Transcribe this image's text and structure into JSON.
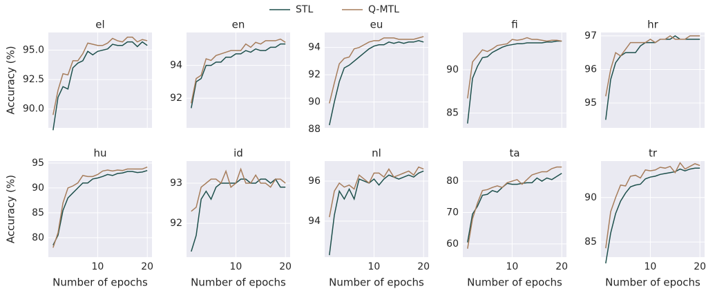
{
  "chart_data": [
    {
      "type": "line",
      "title": "el",
      "ylabel": "Accuracy (%)",
      "show_xtick_labels": false,
      "grid": true,
      "x": [
        1,
        2,
        3,
        4,
        5,
        6,
        7,
        8,
        9,
        10,
        11,
        12,
        13,
        14,
        15,
        16,
        17,
        18,
        19,
        20
      ],
      "xlim": [
        0.05,
        20.95
      ],
      "xticks": [
        10,
        20
      ],
      "ylim": [
        88.4,
        96.5
      ],
      "yticks": [
        {
          "value": 90,
          "label": "90.0"
        },
        92.5,
        {
          "value": 95,
          "label": "95.0"
        }
      ],
      "series": [
        {
          "name": "STL",
          "color": "#1d4f4b",
          "values": [
            88.2,
            91.0,
            91.9,
            91.7,
            93.5,
            93.9,
            94.1,
            94.9,
            94.6,
            94.9,
            95.0,
            95.1,
            95.5,
            95.4,
            95.4,
            95.7,
            95.7,
            95.3,
            95.7,
            95.4
          ]
        },
        {
          "name": "Q-MTL",
          "color": "#a67c5a",
          "values": [
            89.5,
            91.6,
            93.0,
            92.9,
            94.1,
            94.1,
            94.7,
            95.6,
            95.5,
            95.4,
            95.4,
            95.6,
            96.0,
            95.8,
            95.7,
            96.1,
            96.1,
            95.7,
            95.9,
            95.8
          ]
        }
      ]
    },
    {
      "type": "line",
      "title": "en",
      "show_xtick_labels": false,
      "grid": true,
      "x": [
        1,
        2,
        3,
        4,
        5,
        6,
        7,
        8,
        9,
        10,
        11,
        12,
        13,
        14,
        15,
        16,
        17,
        18,
        19,
        20
      ],
      "xlim": [
        0.05,
        20.95
      ],
      "xticks": [
        10,
        20
      ],
      "ylim": [
        90.2,
        96.0
      ],
      "yticks": [
        92,
        94
      ],
      "series": [
        {
          "name": "STL",
          "color": "#1d4f4b",
          "values": [
            91.4,
            93.0,
            93.2,
            94.0,
            94.0,
            94.2,
            94.2,
            94.5,
            94.5,
            94.7,
            94.7,
            94.9,
            94.8,
            95.0,
            94.9,
            94.9,
            95.1,
            95.1,
            95.3,
            95.3
          ]
        },
        {
          "name": "Q-MTL",
          "color": "#a67c5a",
          "values": [
            91.7,
            93.2,
            93.4,
            94.4,
            94.3,
            94.6,
            94.7,
            94.8,
            94.9,
            94.9,
            94.9,
            95.3,
            95.1,
            95.4,
            95.3,
            95.5,
            95.5,
            95.5,
            95.6,
            95.4
          ]
        }
      ]
    },
    {
      "type": "line",
      "title": "eu",
      "show_xtick_labels": false,
      "grid": true,
      "x": [
        1,
        2,
        3,
        4,
        5,
        6,
        7,
        8,
        9,
        10,
        11,
        12,
        13,
        14,
        15,
        16,
        17,
        18,
        19,
        20
      ],
      "xlim": [
        0.05,
        20.95
      ],
      "xticks": [
        10,
        20
      ],
      "ylim": [
        88.1,
        95.1
      ],
      "yticks": [
        88,
        90,
        92,
        94
      ],
      "series": [
        {
          "name": "STL",
          "color": "#1d4f4b",
          "values": [
            88.3,
            90.0,
            91.5,
            92.5,
            92.7,
            93.0,
            93.3,
            93.6,
            93.9,
            94.1,
            94.2,
            94.2,
            94.4,
            94.3,
            94.4,
            94.3,
            94.4,
            94.4,
            94.5,
            94.4
          ]
        },
        {
          "name": "Q-MTL",
          "color": "#a67c5a",
          "values": [
            89.9,
            91.4,
            92.8,
            93.2,
            93.3,
            93.9,
            94.0,
            94.2,
            94.4,
            94.5,
            94.5,
            94.7,
            94.7,
            94.7,
            94.6,
            94.6,
            94.6,
            94.6,
            94.7,
            94.8
          ]
        }
      ]
    },
    {
      "type": "line",
      "title": "fi",
      "show_xtick_labels": false,
      "grid": true,
      "x": [
        1,
        2,
        3,
        4,
        5,
        6,
        7,
        8,
        9,
        10,
        11,
        12,
        13,
        14,
        15,
        16,
        17,
        18,
        19,
        20
      ],
      "xlim": [
        0.05,
        20.95
      ],
      "xticks": [
        10,
        20
      ],
      "ylim": [
        83.3,
        94.3
      ],
      "yticks": [
        85,
        90
      ],
      "series": [
        {
          "name": "STL",
          "color": "#1d4f4b",
          "values": [
            83.8,
            89.0,
            90.4,
            91.4,
            91.5,
            92.0,
            92.3,
            92.6,
            92.8,
            92.9,
            93.0,
            93.0,
            93.1,
            93.1,
            93.1,
            93.1,
            93.2,
            93.2,
            93.3,
            93.3
          ]
        },
        {
          "name": "Q-MTL",
          "color": "#a67c5a",
          "values": [
            86.7,
            90.9,
            91.6,
            92.3,
            92.1,
            92.4,
            92.8,
            92.9,
            93.0,
            93.5,
            93.4,
            93.5,
            93.7,
            93.5,
            93.5,
            93.4,
            93.3,
            93.4,
            93.4,
            93.3
          ]
        }
      ]
    },
    {
      "type": "line",
      "title": "hr",
      "show_xtick_labels": false,
      "grid": true,
      "x": [
        1,
        2,
        3,
        4,
        5,
        6,
        7,
        8,
        9,
        10,
        11,
        12,
        13,
        14,
        15,
        16,
        17,
        18,
        19,
        20
      ],
      "xlim": [
        0.05,
        20.95
      ],
      "xticks": [
        10,
        20
      ],
      "ylim": [
        94.26,
        97.1
      ],
      "yticks": [
        95,
        96,
        97
      ],
      "series": [
        {
          "name": "STL",
          "color": "#1d4f4b",
          "values": [
            94.5,
            95.7,
            96.2,
            96.4,
            96.5,
            96.5,
            96.5,
            96.7,
            96.8,
            96.8,
            96.8,
            96.9,
            96.9,
            96.9,
            97.0,
            96.9,
            96.9,
            96.9,
            96.9,
            96.9
          ]
        },
        {
          "name": "Q-MTL",
          "color": "#a67c5a",
          "values": [
            95.2,
            96.0,
            96.5,
            96.4,
            96.6,
            96.8,
            96.8,
            96.8,
            96.8,
            96.9,
            96.8,
            96.9,
            96.9,
            97.0,
            96.9,
            96.9,
            96.9,
            97.0,
            97.0,
            97.0
          ]
        }
      ]
    },
    {
      "type": "line",
      "title": "hu",
      "ylabel": "Accuracy (%)",
      "xlabel": "Number of epochs",
      "grid": true,
      "x": [
        1,
        2,
        3,
        4,
        5,
        6,
        7,
        8,
        9,
        10,
        11,
        12,
        13,
        14,
        15,
        16,
        17,
        18,
        19,
        20
      ],
      "xlim": [
        0.05,
        20.95
      ],
      "xticks": [
        10,
        20
      ],
      "ylim": [
        76.1,
        95.4
      ],
      "yticks": [
        80,
        85,
        90,
        95
      ],
      "series": [
        {
          "name": "STL",
          "color": "#1d4f4b",
          "values": [
            78.5,
            80.5,
            85.5,
            88.0,
            89.0,
            90.0,
            91.0,
            91.0,
            91.8,
            92.0,
            92.3,
            92.7,
            92.5,
            92.9,
            93.0,
            93.3,
            93.3,
            93.1,
            93.2,
            93.5
          ]
        },
        {
          "name": "Q-MTL",
          "color": "#a67c5a",
          "values": [
            78.0,
            81.0,
            87.0,
            90.0,
            90.4,
            91.0,
            92.5,
            92.3,
            92.3,
            92.7,
            93.4,
            93.6,
            93.4,
            93.6,
            93.5,
            93.8,
            93.8,
            93.8,
            93.8,
            94.2
          ]
        }
      ]
    },
    {
      "type": "line",
      "title": "id",
      "xlabel": "Number of epochs",
      "grid": true,
      "x": [
        1,
        2,
        3,
        4,
        5,
        6,
        7,
        8,
        9,
        10,
        11,
        12,
        13,
        14,
        15,
        16,
        17,
        18,
        19,
        20
      ],
      "xlim": [
        0.05,
        20.95
      ],
      "xticks": [
        10,
        20
      ],
      "ylim": [
        91.16,
        93.55
      ],
      "yticks": [
        92,
        93
      ],
      "series": [
        {
          "name": "STL",
          "color": "#1d4f4b",
          "values": [
            91.3,
            91.7,
            92.6,
            92.8,
            92.6,
            92.9,
            93.0,
            93.0,
            93.0,
            93.0,
            93.1,
            93.1,
            93.0,
            93.0,
            93.1,
            93.1,
            93.0,
            93.1,
            92.9,
            92.9
          ]
        },
        {
          "name": "Q-MTL",
          "color": "#a67c5a",
          "values": [
            92.3,
            92.4,
            92.9,
            93.0,
            93.1,
            93.1,
            93.0,
            93.3,
            92.9,
            93.0,
            93.35,
            93.0,
            93.0,
            93.2,
            93.0,
            93.0,
            92.9,
            93.1,
            93.1,
            93.0
          ]
        }
      ]
    },
    {
      "type": "line",
      "title": "nl",
      "xlabel": "Number of epochs",
      "grid": true,
      "x": [
        1,
        2,
        3,
        4,
        5,
        6,
        7,
        8,
        9,
        10,
        11,
        12,
        13,
        14,
        15,
        16,
        17,
        18,
        19,
        20
      ],
      "xlim": [
        0.05,
        20.95
      ],
      "xticks": [
        10,
        20
      ],
      "ylim": [
        92.2,
        97.0
      ],
      "yticks": [
        94,
        96
      ],
      "series": [
        {
          "name": "STL",
          "color": "#1d4f4b",
          "values": [
            92.3,
            94.3,
            95.5,
            95.1,
            95.6,
            95.1,
            96.1,
            96.0,
            95.9,
            96.1,
            95.8,
            96.1,
            96.3,
            96.2,
            96.1,
            96.2,
            96.3,
            96.2,
            96.4,
            96.5
          ]
        },
        {
          "name": "Q-MTL",
          "color": "#a67c5a",
          "values": [
            94.2,
            95.5,
            95.9,
            95.7,
            95.8,
            95.6,
            96.3,
            96.1,
            95.9,
            96.4,
            96.4,
            96.2,
            96.6,
            96.2,
            96.3,
            96.4,
            96.5,
            96.3,
            96.7,
            96.6
          ]
        }
      ]
    },
    {
      "type": "line",
      "title": "ta",
      "xlabel": "Number of epochs",
      "grid": true,
      "x": [
        1,
        2,
        3,
        4,
        5,
        6,
        7,
        8,
        9,
        10,
        11,
        12,
        13,
        14,
        15,
        16,
        17,
        18,
        19,
        20
      ],
      "xlim": [
        0.05,
        20.95
      ],
      "xticks": [
        10,
        20
      ],
      "ylim": [
        55.8,
        86.4
      ],
      "yticks": [
        60,
        70,
        80
      ],
      "series": [
        {
          "name": "STL",
          "color": "#1d4f4b",
          "values": [
            60.5,
            69.5,
            72,
            75.5,
            75.8,
            77,
            76.5,
            78,
            79.3,
            79,
            79,
            79.3,
            79.5,
            79.5,
            81,
            80,
            81,
            80.5,
            81.5,
            82.5
          ]
        },
        {
          "name": "Q-MTL",
          "color": "#a67c5a",
          "values": [
            58.5,
            68,
            73,
            77,
            77.3,
            78,
            78.5,
            78,
            79.5,
            80,
            80.5,
            79,
            80.5,
            82,
            82.5,
            83,
            83,
            84,
            84.5,
            84.5
          ]
        }
      ]
    },
    {
      "type": "line",
      "title": "tr",
      "xlabel": "Number of epochs",
      "grid": true,
      "x": [
        1,
        2,
        3,
        4,
        5,
        6,
        7,
        8,
        9,
        10,
        11,
        12,
        13,
        14,
        15,
        16,
        17,
        18,
        19,
        20
      ],
      "xlim": [
        0.05,
        20.95
      ],
      "xticks": [
        10,
        20
      ],
      "ylim": [
        83.3,
        94.1
      ],
      "yticks": [
        85,
        90
      ],
      "series": [
        {
          "name": "STL",
          "color": "#1d4f4b",
          "values": [
            82.6,
            86.0,
            88.2,
            89.6,
            90.5,
            91.2,
            91.4,
            91.5,
            92.1,
            92.3,
            92.4,
            92.6,
            92.7,
            92.8,
            92.9,
            93.2,
            93.0,
            93.2,
            93.3,
            93.3
          ]
        },
        {
          "name": "Q-MTL",
          "color": "#a67c5a",
          "values": [
            84.3,
            88.4,
            90.0,
            91.4,
            91.3,
            92.4,
            92.5,
            92.2,
            93.1,
            93.0,
            93.1,
            93.4,
            93.3,
            93.5,
            92.8,
            93.9,
            93.2,
            93.5,
            93.8,
            93.6
          ]
        }
      ]
    }
  ]
}
